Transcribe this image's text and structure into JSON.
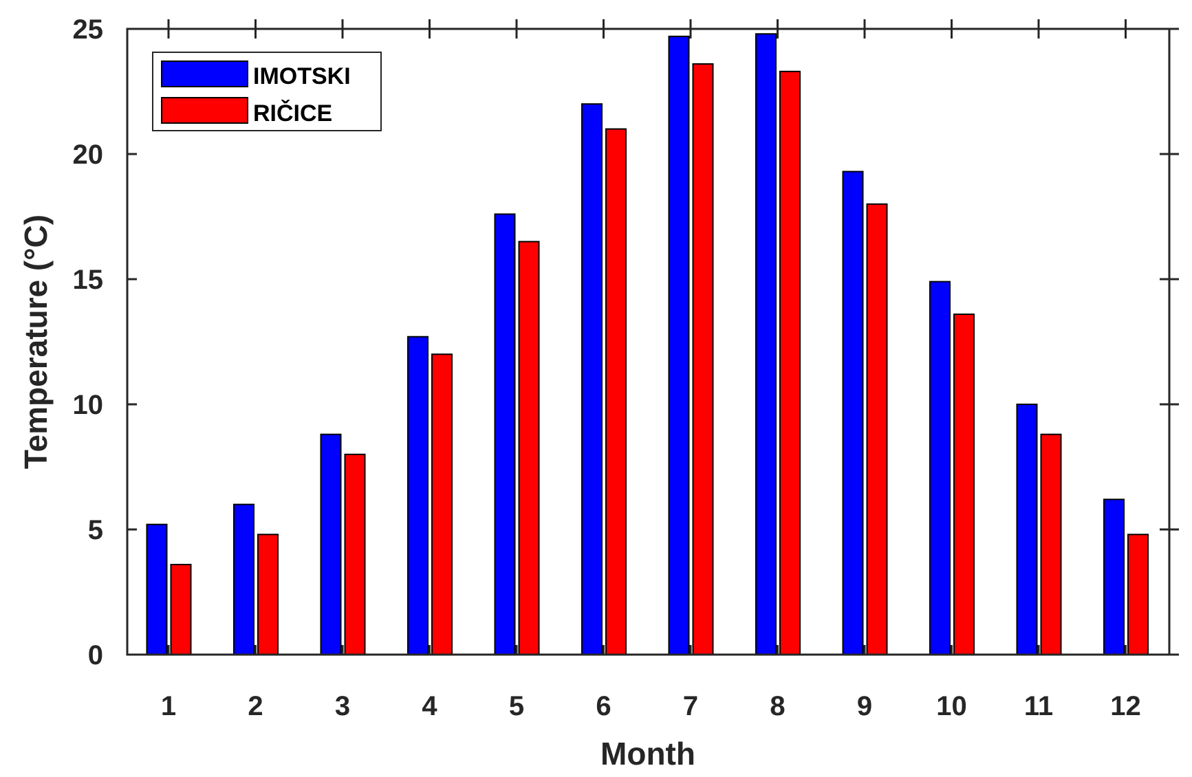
{
  "chart_data": {
    "type": "bar",
    "title": "",
    "xlabel": "Month",
    "ylabel": "Temperature (°C)",
    "categories": [
      "1",
      "2",
      "3",
      "4",
      "5",
      "6",
      "7",
      "8",
      "9",
      "10",
      "11",
      "12"
    ],
    "ylim": [
      0,
      25
    ],
    "yticks": [
      "0",
      "5",
      "10",
      "15",
      "20",
      "25"
    ],
    "grid": false,
    "legend_position": "top-left",
    "series": [
      {
        "name": "IMOTSKI",
        "color": "#0000ff",
        "values": [
          5.2,
          6.0,
          8.8,
          12.7,
          17.6,
          22.0,
          24.7,
          24.8,
          19.3,
          14.9,
          10.0,
          6.2
        ]
      },
      {
        "name": "RIČICE",
        "color": "#ff0000",
        "values": [
          3.6,
          4.8,
          8.0,
          12.0,
          16.5,
          21.0,
          23.6,
          23.3,
          18.0,
          13.6,
          8.8,
          4.8
        ]
      }
    ]
  }
}
